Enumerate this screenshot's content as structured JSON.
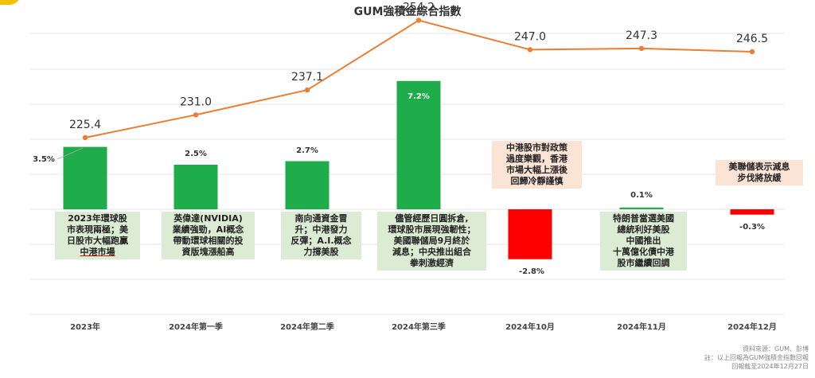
{
  "chart_data": {
    "type": "bar+line",
    "title": "GUM強積金綜合指數",
    "categories": [
      "2023年",
      "2024年第一季",
      "2024年第二季",
      "2024年第三季",
      "2024年10月",
      "2024年11月",
      "2024年12月"
    ],
    "bar_series": {
      "values": [
        3.5,
        2.5,
        2.7,
        7.2,
        -2.8,
        0.1,
        -0.3
      ],
      "labels": [
        "3.5%",
        "2.5%",
        "2.7%",
        "7.2%",
        "-2.8%",
        "0.1%",
        "-0.3%"
      ],
      "colors": [
        "#1fad4b",
        "#1fad4b",
        "#1fad4b",
        "#1fad4b",
        "#ff0000",
        "#1fad4b",
        "#ff0000"
      ]
    },
    "line_series": {
      "values": [
        225.4,
        231.0,
        237.1,
        254.2,
        247.0,
        247.3,
        246.5
      ],
      "labels": [
        "225.4",
        "231.0",
        "237.1",
        "254.2",
        "247.0",
        "247.3",
        "246.5"
      ],
      "color": "#ed7d31"
    },
    "grid": true
  },
  "annotations": [
    {
      "lines": [
        "2023年環球股",
        "市表現兩極；美",
        "日股市大幅跑贏",
        "中港市場"
      ],
      "style": "green"
    },
    {
      "lines": [
        "英偉達(NVIDIA)",
        "業績強勁，AI概念",
        "帶動環球相關的投",
        "資版塊漲船高"
      ],
      "style": "green"
    },
    {
      "lines": [
        "南向通資金冒",
        "升；中港發力",
        "反彈；A.I.概念",
        "力撐美股"
      ],
      "style": "green"
    },
    {
      "lines": [
        "儘管經歷日圓拆倉,",
        "環球股市展現強韌性；",
        "美國聯儲局9月終於",
        "減息；中央推出組合",
        "拳刺激經濟"
      ],
      "style": "green"
    },
    {
      "lines": [
        "中港股市對政策",
        "過度樂觀，香港",
        "市場大幅上漲後",
        "回歸冷靜謹慎"
      ],
      "style": "peach"
    },
    {
      "lines": [
        "特朗普當選美國",
        "總統利好美股",
        "中國推出",
        "十萬億化債中港",
        "股市繼續回調"
      ],
      "style": "green"
    },
    {
      "lines": [
        "美聯儲表示減息",
        "步伐將放緩"
      ],
      "style": "peach"
    }
  ],
  "source": {
    "line1": "資料來源：GUM、彭博",
    "line2": "註：以上回報為GUM強積金指數回報",
    "line3": "回報截至2024年12月27日"
  }
}
